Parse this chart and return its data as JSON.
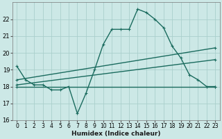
{
  "xlabel": "Humidex (Indice chaleur)",
  "bg_color": "#cce8e6",
  "grid_color": "#aacfcc",
  "line_color": "#1a6b5e",
  "xlim": [
    -0.5,
    23.5
  ],
  "ylim": [
    16,
    23
  ],
  "yticks": [
    16,
    17,
    18,
    19,
    20,
    21,
    22
  ],
  "xticks": [
    0,
    1,
    2,
    3,
    4,
    5,
    6,
    7,
    8,
    9,
    10,
    11,
    12,
    13,
    14,
    15,
    16,
    17,
    18,
    19,
    20,
    21,
    22,
    23
  ],
  "line1_x": [
    0,
    1,
    2,
    3,
    4,
    5,
    6,
    7,
    8,
    9,
    10,
    11,
    12,
    13,
    14,
    15,
    16,
    17,
    18,
    19,
    20,
    21,
    22,
    23
  ],
  "line1_y": [
    19.2,
    18.4,
    18.1,
    18.1,
    17.8,
    17.8,
    18.0,
    16.4,
    17.6,
    19.0,
    20.5,
    21.4,
    21.4,
    21.4,
    22.6,
    22.4,
    22.0,
    21.5,
    20.4,
    19.7,
    18.7,
    18.4,
    18.0,
    18.0
  ],
  "line2_x": [
    0,
    23
  ],
  "line2_y": [
    18.0,
    18.0
  ],
  "line3_x": [
    0,
    23
  ],
  "line3_y": [
    18.4,
    20.3
  ],
  "line4_x": [
    0,
    23
  ],
  "line4_y": [
    18.1,
    19.6
  ]
}
